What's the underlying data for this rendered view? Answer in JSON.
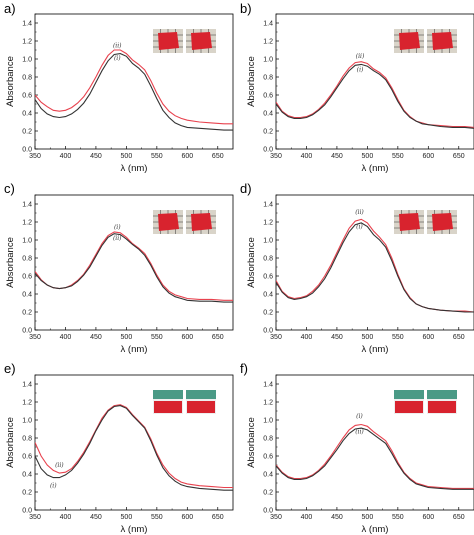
{
  "chart_data": [
    {
      "panel": "a)",
      "type": "line",
      "xlabel": "λ (nm)",
      "ylabel": "Absorbance",
      "xlim": [
        350,
        675
      ],
      "ylim": [
        0,
        1.5
      ],
      "xticks": [
        "350",
        "400",
        "450",
        "500",
        "550",
        "600",
        "650"
      ],
      "yticks": [
        "0.0",
        "0.2",
        "0.4",
        "0.6",
        "0.8",
        "1.0",
        "1.2",
        "1.4"
      ],
      "grid": false,
      "annotations": [
        {
          "text": "(ii)",
          "x": 485,
          "y": 1.13
        },
        {
          "text": "(i)",
          "x": 485,
          "y": 0.99
        }
      ],
      "inset": "photos",
      "series": [
        {
          "color": "#e8424e",
          "x": [
            350,
            360,
            370,
            380,
            390,
            400,
            410,
            420,
            430,
            440,
            450,
            460,
            470,
            480,
            490,
            500,
            510,
            520,
            530,
            540,
            550,
            560,
            570,
            580,
            590,
            600,
            620,
            640,
            660,
            675
          ],
          "y": [
            0.6,
            0.52,
            0.47,
            0.43,
            0.42,
            0.43,
            0.46,
            0.51,
            0.58,
            0.68,
            0.8,
            0.93,
            1.04,
            1.1,
            1.1,
            1.06,
            0.99,
            0.94,
            0.88,
            0.76,
            0.62,
            0.5,
            0.42,
            0.37,
            0.34,
            0.32,
            0.3,
            0.29,
            0.28,
            0.28
          ]
        },
        {
          "color": "#333333",
          "x": [
            350,
            360,
            370,
            380,
            390,
            400,
            410,
            420,
            430,
            440,
            450,
            460,
            470,
            480,
            490,
            500,
            510,
            520,
            530,
            540,
            550,
            560,
            570,
            580,
            590,
            600,
            620,
            640,
            660,
            675
          ],
          "y": [
            0.55,
            0.45,
            0.39,
            0.36,
            0.35,
            0.36,
            0.39,
            0.44,
            0.51,
            0.61,
            0.74,
            0.87,
            0.98,
            1.05,
            1.06,
            1.03,
            0.95,
            0.9,
            0.83,
            0.7,
            0.56,
            0.43,
            0.35,
            0.29,
            0.26,
            0.24,
            0.23,
            0.22,
            0.21,
            0.21
          ]
        }
      ]
    },
    {
      "panel": "b)",
      "type": "line",
      "xlabel": "λ (nm)",
      "ylabel": "Absorbance",
      "xlim": [
        350,
        675
      ],
      "ylim": [
        0,
        1.5
      ],
      "xticks": [
        "350",
        "400",
        "450",
        "500",
        "550",
        "600",
        "650"
      ],
      "yticks": [
        "0.0",
        "0.2",
        "0.4",
        "0.6",
        "0.8",
        "1.0",
        "1.2",
        "1.4"
      ],
      "grid": false,
      "annotations": [
        {
          "text": "(ii)",
          "x": 488,
          "y": 1.01
        },
        {
          "text": "(i)",
          "x": 488,
          "y": 0.86
        }
      ],
      "inset": "photos",
      "series": [
        {
          "color": "#e8424e",
          "x": [
            350,
            360,
            370,
            380,
            390,
            400,
            410,
            420,
            430,
            440,
            450,
            460,
            470,
            480,
            490,
            500,
            510,
            520,
            530,
            540,
            550,
            560,
            570,
            580,
            590,
            600,
            620,
            640,
            660,
            675
          ],
          "y": [
            0.52,
            0.42,
            0.37,
            0.35,
            0.35,
            0.36,
            0.39,
            0.44,
            0.51,
            0.6,
            0.7,
            0.81,
            0.9,
            0.96,
            0.97,
            0.95,
            0.89,
            0.85,
            0.79,
            0.68,
            0.55,
            0.43,
            0.36,
            0.31,
            0.29,
            0.27,
            0.26,
            0.25,
            0.25,
            0.24
          ]
        },
        {
          "color": "#333333",
          "x": [
            350,
            360,
            370,
            380,
            390,
            400,
            410,
            420,
            430,
            440,
            450,
            460,
            470,
            480,
            490,
            500,
            510,
            520,
            530,
            540,
            550,
            560,
            570,
            580,
            590,
            600,
            620,
            640,
            660,
            675
          ],
          "y": [
            0.5,
            0.41,
            0.36,
            0.34,
            0.34,
            0.35,
            0.38,
            0.43,
            0.49,
            0.58,
            0.68,
            0.78,
            0.87,
            0.93,
            0.94,
            0.92,
            0.87,
            0.83,
            0.77,
            0.66,
            0.53,
            0.42,
            0.35,
            0.31,
            0.28,
            0.27,
            0.25,
            0.24,
            0.24,
            0.23
          ]
        }
      ]
    },
    {
      "panel": "c)",
      "type": "line",
      "xlabel": "λ (nm)",
      "ylabel": "Absorbance",
      "xlim": [
        350,
        675
      ],
      "ylim": [
        0,
        1.5
      ],
      "xticks": [
        "350",
        "400",
        "450",
        "500",
        "550",
        "600",
        "650"
      ],
      "yticks": [
        "0.0",
        "0.2",
        "0.4",
        "0.6",
        "0.8",
        "1.0",
        "1.2",
        "1.4"
      ],
      "grid": false,
      "annotations": [
        {
          "text": "(i)",
          "x": 485,
          "y": 1.12
        },
        {
          "text": "(ii)",
          "x": 485,
          "y": 1.0
        }
      ],
      "inset": "photos",
      "series": [
        {
          "color": "#e8424e",
          "x": [
            350,
            360,
            370,
            380,
            390,
            400,
            410,
            420,
            430,
            440,
            450,
            460,
            470,
            480,
            490,
            500,
            510,
            520,
            530,
            540,
            550,
            560,
            570,
            580,
            590,
            600,
            620,
            640,
            660,
            675
          ],
          "y": [
            0.65,
            0.56,
            0.5,
            0.47,
            0.46,
            0.47,
            0.5,
            0.55,
            0.62,
            0.72,
            0.84,
            0.96,
            1.05,
            1.09,
            1.08,
            1.03,
            0.96,
            0.91,
            0.85,
            0.74,
            0.61,
            0.5,
            0.43,
            0.39,
            0.37,
            0.35,
            0.34,
            0.34,
            0.33,
            0.33
          ]
        },
        {
          "color": "#333333",
          "x": [
            350,
            360,
            370,
            380,
            390,
            400,
            410,
            420,
            430,
            440,
            450,
            460,
            470,
            480,
            490,
            500,
            510,
            520,
            530,
            540,
            550,
            560,
            570,
            580,
            590,
            600,
            620,
            640,
            660,
            675
          ],
          "y": [
            0.63,
            0.55,
            0.5,
            0.47,
            0.46,
            0.47,
            0.49,
            0.54,
            0.61,
            0.7,
            0.82,
            0.94,
            1.03,
            1.07,
            1.06,
            1.01,
            0.95,
            0.9,
            0.83,
            0.72,
            0.59,
            0.48,
            0.41,
            0.37,
            0.35,
            0.33,
            0.32,
            0.32,
            0.31,
            0.31
          ]
        }
      ]
    },
    {
      "panel": "d)",
      "type": "line",
      "xlabel": "λ (nm)",
      "ylabel": "Absorbance",
      "xlim": [
        350,
        675
      ],
      "ylim": [
        0,
        1.5
      ],
      "xticks": [
        "350",
        "400",
        "450",
        "500",
        "550",
        "600",
        "650"
      ],
      "yticks": [
        "0.0",
        "0.2",
        "0.4",
        "0.6",
        "0.8",
        "1.0",
        "1.2",
        "1.4"
      ],
      "grid": false,
      "annotations": [
        {
          "text": "(ii)",
          "x": 487,
          "y": 1.29
        },
        {
          "text": "(i)",
          "x": 487,
          "y": 1.13
        }
      ],
      "inset": "photos",
      "series": [
        {
          "color": "#e8424e",
          "x": [
            350,
            360,
            370,
            380,
            390,
            400,
            410,
            420,
            430,
            440,
            450,
            460,
            470,
            480,
            490,
            500,
            510,
            520,
            530,
            540,
            550,
            560,
            570,
            580,
            590,
            600,
            620,
            640,
            660,
            675
          ],
          "y": [
            0.55,
            0.43,
            0.37,
            0.35,
            0.36,
            0.38,
            0.43,
            0.5,
            0.6,
            0.72,
            0.86,
            1.0,
            1.13,
            1.21,
            1.23,
            1.19,
            1.1,
            1.03,
            0.95,
            0.8,
            0.62,
            0.46,
            0.36,
            0.29,
            0.26,
            0.24,
            0.22,
            0.21,
            0.21,
            0.2
          ]
        },
        {
          "color": "#333333",
          "x": [
            350,
            360,
            370,
            380,
            390,
            400,
            410,
            420,
            430,
            440,
            450,
            460,
            470,
            480,
            490,
            500,
            510,
            520,
            530,
            540,
            550,
            560,
            570,
            580,
            590,
            600,
            620,
            640,
            660,
            675
          ],
          "y": [
            0.53,
            0.42,
            0.36,
            0.34,
            0.35,
            0.37,
            0.41,
            0.48,
            0.57,
            0.69,
            0.83,
            0.97,
            1.09,
            1.17,
            1.19,
            1.15,
            1.06,
            1.0,
            0.92,
            0.77,
            0.6,
            0.45,
            0.35,
            0.29,
            0.26,
            0.24,
            0.22,
            0.21,
            0.2,
            0.2
          ]
        }
      ]
    },
    {
      "panel": "e)",
      "type": "line",
      "xlabel": "λ (nm)",
      "ylabel": "Absorbance",
      "xlim": [
        350,
        675
      ],
      "ylim": [
        0,
        1.5
      ],
      "xticks": [
        "350",
        "400",
        "450",
        "500",
        "550",
        "600",
        "650"
      ],
      "yticks": [
        "0.0",
        "0.2",
        "0.4",
        "0.6",
        "0.8",
        "1.0",
        "1.2",
        "1.4"
      ],
      "grid": false,
      "annotations": [
        {
          "text": "(ii)",
          "x": 390,
          "y": 0.48
        },
        {
          "text": "(i)",
          "x": 380,
          "y": 0.25
        }
      ],
      "inset": "photos",
      "series": [
        {
          "color": "#e8424e",
          "x": [
            350,
            360,
            370,
            380,
            390,
            400,
            410,
            420,
            430,
            440,
            450,
            460,
            470,
            480,
            490,
            500,
            510,
            520,
            530,
            540,
            550,
            560,
            570,
            580,
            590,
            600,
            620,
            640,
            660,
            675
          ],
          "y": [
            0.75,
            0.6,
            0.5,
            0.44,
            0.41,
            0.42,
            0.46,
            0.54,
            0.64,
            0.76,
            0.89,
            1.02,
            1.11,
            1.16,
            1.17,
            1.14,
            1.06,
            0.99,
            0.92,
            0.79,
            0.63,
            0.5,
            0.41,
            0.35,
            0.31,
            0.29,
            0.27,
            0.26,
            0.25,
            0.25
          ]
        },
        {
          "color": "#333333",
          "x": [
            350,
            360,
            370,
            380,
            390,
            400,
            410,
            420,
            430,
            440,
            450,
            460,
            470,
            480,
            490,
            500,
            510,
            520,
            530,
            540,
            550,
            560,
            570,
            580,
            590,
            600,
            620,
            640,
            660,
            675
          ],
          "y": [
            0.6,
            0.46,
            0.39,
            0.36,
            0.36,
            0.39,
            0.44,
            0.52,
            0.62,
            0.74,
            0.88,
            1.0,
            1.1,
            1.15,
            1.16,
            1.13,
            1.05,
            0.98,
            0.91,
            0.77,
            0.61,
            0.47,
            0.38,
            0.32,
            0.28,
            0.26,
            0.24,
            0.23,
            0.22,
            0.22
          ]
        }
      ]
    },
    {
      "panel": "f)",
      "type": "line",
      "xlabel": "λ (nm)",
      "ylabel": "Absorbance",
      "xlim": [
        350,
        675
      ],
      "ylim": [
        0,
        1.5
      ],
      "xticks": [
        "350",
        "400",
        "450",
        "500",
        "550",
        "600",
        "650"
      ],
      "yticks": [
        "0.0",
        "0.2",
        "0.4",
        "0.6",
        "0.8",
        "1.0",
        "1.2",
        "1.4"
      ],
      "grid": false,
      "annotations": [
        {
          "text": "(i)",
          "x": 487,
          "y": 1.02
        },
        {
          "text": "(ii)",
          "x": 487,
          "y": 0.85
        }
      ],
      "inset": "photos",
      "series": [
        {
          "color": "#e8424e",
          "x": [
            350,
            360,
            370,
            380,
            390,
            400,
            410,
            420,
            430,
            440,
            450,
            460,
            470,
            480,
            490,
            500,
            510,
            520,
            530,
            540,
            550,
            560,
            570,
            580,
            590,
            600,
            620,
            640,
            660,
            675
          ],
          "y": [
            0.5,
            0.42,
            0.37,
            0.35,
            0.35,
            0.36,
            0.39,
            0.44,
            0.51,
            0.6,
            0.7,
            0.8,
            0.89,
            0.94,
            0.95,
            0.93,
            0.87,
            0.82,
            0.77,
            0.66,
            0.53,
            0.42,
            0.35,
            0.3,
            0.28,
            0.26,
            0.25,
            0.24,
            0.24,
            0.24
          ]
        },
        {
          "color": "#333333",
          "x": [
            350,
            360,
            370,
            380,
            390,
            400,
            410,
            420,
            430,
            440,
            450,
            460,
            470,
            480,
            490,
            500,
            510,
            520,
            530,
            540,
            550,
            560,
            570,
            580,
            590,
            600,
            620,
            640,
            660,
            675
          ],
          "y": [
            0.49,
            0.41,
            0.36,
            0.34,
            0.34,
            0.35,
            0.38,
            0.43,
            0.49,
            0.58,
            0.67,
            0.77,
            0.85,
            0.9,
            0.91,
            0.89,
            0.84,
            0.79,
            0.74,
            0.63,
            0.51,
            0.41,
            0.34,
            0.29,
            0.27,
            0.25,
            0.24,
            0.23,
            0.23,
            0.23
          ]
        }
      ]
    }
  ],
  "colors": {
    "series_a": "#e8424e",
    "series_b": "#333333",
    "photo_red": "#d8232e",
    "photo_paper_gray": "#d9d4c9",
    "photo_ruler_green": "#4a9a86"
  }
}
